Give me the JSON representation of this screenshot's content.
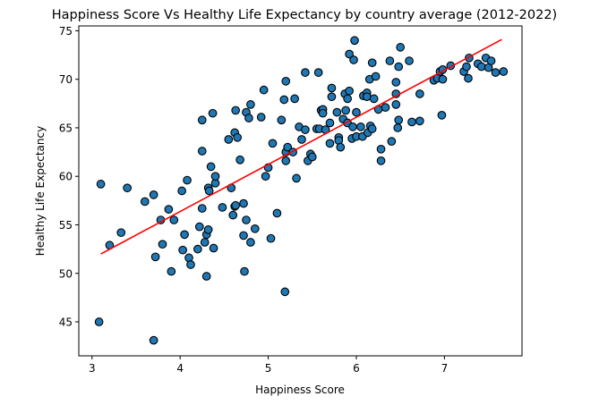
{
  "chart_data": {
    "type": "scatter",
    "title": "Happiness Score Vs Healthy Life Expectancy by country average (2012-2022)",
    "xlabel": "Happiness Score",
    "ylabel": "Healthy Life Expectancy",
    "xlim": [
      2.85,
      7.88
    ],
    "ylim": [
      41.5,
      75.5
    ],
    "xticks": [
      3,
      4,
      5,
      6,
      7
    ],
    "yticks": [
      45,
      50,
      55,
      60,
      65,
      70,
      75
    ],
    "grid": false,
    "colors": {
      "points": "#1f77b4",
      "point_edge": "#000000",
      "trend": "#ff0000",
      "axes": "#000000"
    },
    "trend_line": {
      "x": [
        3.1,
        7.65
      ],
      "y": [
        52.0,
        74.1
      ]
    },
    "points": [
      [
        3.08,
        45.0
      ],
      [
        3.1,
        59.2
      ],
      [
        3.2,
        52.9
      ],
      [
        3.33,
        54.2
      ],
      [
        3.4,
        58.8
      ],
      [
        3.6,
        57.4
      ],
      [
        3.7,
        43.1
      ],
      [
        3.7,
        58.1
      ],
      [
        3.72,
        51.7
      ],
      [
        3.78,
        55.5
      ],
      [
        3.8,
        53.0
      ],
      [
        3.87,
        56.6
      ],
      [
        3.9,
        50.2
      ],
      [
        3.93,
        55.5
      ],
      [
        4.02,
        58.5
      ],
      [
        4.03,
        52.4
      ],
      [
        4.05,
        54.0
      ],
      [
        4.08,
        59.6
      ],
      [
        4.1,
        51.6
      ],
      [
        4.12,
        50.9
      ],
      [
        4.2,
        52.5
      ],
      [
        4.22,
        54.8
      ],
      [
        4.25,
        65.8
      ],
      [
        4.25,
        62.6
      ],
      [
        4.25,
        56.7
      ],
      [
        4.28,
        53.2
      ],
      [
        4.3,
        49.7
      ],
      [
        4.3,
        54.0
      ],
      [
        4.32,
        54.5
      ],
      [
        4.32,
        58.8
      ],
      [
        4.33,
        58.5
      ],
      [
        4.35,
        61.0
      ],
      [
        4.37,
        66.5
      ],
      [
        4.38,
        52.6
      ],
      [
        4.4,
        59.3
      ],
      [
        4.4,
        60.0
      ],
      [
        4.48,
        56.8
      ],
      [
        4.55,
        63.8
      ],
      [
        4.58,
        58.8
      ],
      [
        4.6,
        56.0
      ],
      [
        4.62,
        64.5
      ],
      [
        4.62,
        56.9
      ],
      [
        4.63,
        57.0
      ],
      [
        4.63,
        66.8
      ],
      [
        4.65,
        64.0
      ],
      [
        4.68,
        61.7
      ],
      [
        4.72,
        57.2
      ],
      [
        4.72,
        53.9
      ],
      [
        4.73,
        50.2
      ],
      [
        4.75,
        66.6
      ],
      [
        4.75,
        55.5
      ],
      [
        4.78,
        66.0
      ],
      [
        4.8,
        67.4
      ],
      [
        4.8,
        53.2
      ],
      [
        4.85,
        54.6
      ],
      [
        4.92,
        66.1
      ],
      [
        4.95,
        68.9
      ],
      [
        4.97,
        60.0
      ],
      [
        5.0,
        60.9
      ],
      [
        5.03,
        53.6
      ],
      [
        5.05,
        63.4
      ],
      [
        5.1,
        56.2
      ],
      [
        5.15,
        65.8
      ],
      [
        5.18,
        67.9
      ],
      [
        5.19,
        48.1
      ],
      [
        5.2,
        69.8
      ],
      [
        5.2,
        62.5
      ],
      [
        5.2,
        61.6
      ],
      [
        5.22,
        63.0
      ],
      [
        5.28,
        62.5
      ],
      [
        5.3,
        68.0
      ],
      [
        5.32,
        59.8
      ],
      [
        5.35,
        65.1
      ],
      [
        5.38,
        63.8
      ],
      [
        5.42,
        64.8
      ],
      [
        5.42,
        70.7
      ],
      [
        5.45,
        61.6
      ],
      [
        5.48,
        62.3
      ],
      [
        5.5,
        62.0
      ],
      [
        5.55,
        64.9
      ],
      [
        5.57,
        70.7
      ],
      [
        5.58,
        64.9
      ],
      [
        5.6,
        66.8
      ],
      [
        5.62,
        66.9
      ],
      [
        5.62,
        66.5
      ],
      [
        5.65,
        64.8
      ],
      [
        5.7,
        65.5
      ],
      [
        5.7,
        63.4
      ],
      [
        5.72,
        69.1
      ],
      [
        5.72,
        68.2
      ],
      [
        5.78,
        66.6
      ],
      [
        5.8,
        64.0
      ],
      [
        5.8,
        63.7
      ],
      [
        5.82,
        63.0
      ],
      [
        5.85,
        65.9
      ],
      [
        5.87,
        68.5
      ],
      [
        5.88,
        66.8
      ],
      [
        5.9,
        65.5
      ],
      [
        5.9,
        68.0
      ],
      [
        5.92,
        68.8
      ],
      [
        5.92,
        72.6
      ],
      [
        5.95,
        63.9
      ],
      [
        5.96,
        65.1
      ],
      [
        5.97,
        72.0
      ],
      [
        5.98,
        74.0
      ],
      [
        6.0,
        66.6
      ],
      [
        6.0,
        64.1
      ],
      [
        6.05,
        65.1
      ],
      [
        6.07,
        64.1
      ],
      [
        6.08,
        68.3
      ],
      [
        6.12,
        68.6
      ],
      [
        6.12,
        68.2
      ],
      [
        6.13,
        64.5
      ],
      [
        6.15,
        70.0
      ],
      [
        6.16,
        65.2
      ],
      [
        6.18,
        71.7
      ],
      [
        6.18,
        64.9
      ],
      [
        6.2,
        68.0
      ],
      [
        6.22,
        70.3
      ],
      [
        6.25,
        66.9
      ],
      [
        6.28,
        61.6
      ],
      [
        6.28,
        62.8
      ],
      [
        6.33,
        67.1
      ],
      [
        6.38,
        71.9
      ],
      [
        6.4,
        63.6
      ],
      [
        6.45,
        69.7
      ],
      [
        6.45,
        68.5
      ],
      [
        6.45,
        67.4
      ],
      [
        6.47,
        65.0
      ],
      [
        6.48,
        71.3
      ],
      [
        6.48,
        65.8
      ],
      [
        6.5,
        73.3
      ],
      [
        6.6,
        71.9
      ],
      [
        6.63,
        65.6
      ],
      [
        6.72,
        65.7
      ],
      [
        6.72,
        68.5
      ],
      [
        6.88,
        69.9
      ],
      [
        6.92,
        70.1
      ],
      [
        6.95,
        70.8
      ],
      [
        6.97,
        66.3
      ],
      [
        6.98,
        71.0
      ],
      [
        6.98,
        70.0
      ],
      [
        7.07,
        71.4
      ],
      [
        7.22,
        70.8
      ],
      [
        7.25,
        71.3
      ],
      [
        7.27,
        70.1
      ],
      [
        7.28,
        72.2
      ],
      [
        7.38,
        71.6
      ],
      [
        7.42,
        71.3
      ],
      [
        7.47,
        72.2
      ],
      [
        7.5,
        71.2
      ],
      [
        7.53,
        71.9
      ],
      [
        7.58,
        70.7
      ],
      [
        7.67,
        70.8
      ]
    ]
  }
}
